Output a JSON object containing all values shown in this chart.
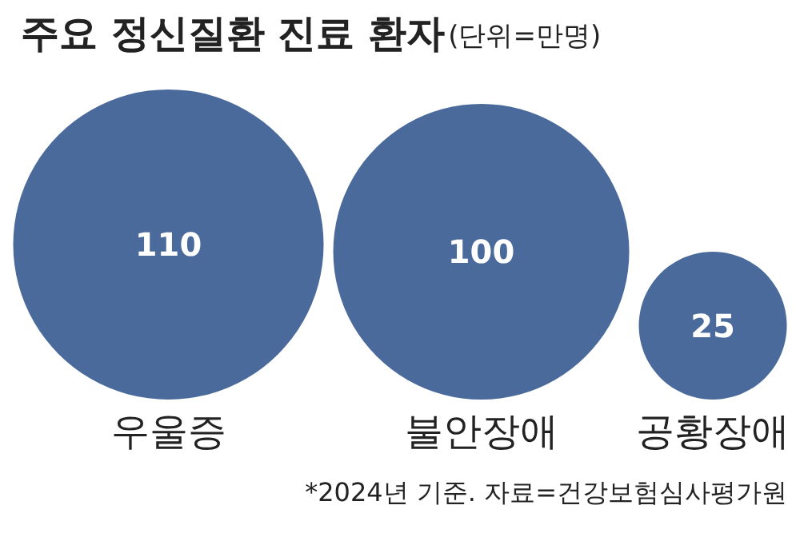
{
  "chart_data": {
    "type": "other",
    "title": "주요 정신질환 진료 환자",
    "subtitle": "(단위=만명)",
    "categories": [
      "우울증",
      "불안장애",
      "공황장애"
    ],
    "values": [
      110,
      100,
      25
    ],
    "color": "#4a6a9c",
    "data_labels": true,
    "annotations": [
      "*2024년 기준. 자료=건강보험심사평가원"
    ]
  }
}
